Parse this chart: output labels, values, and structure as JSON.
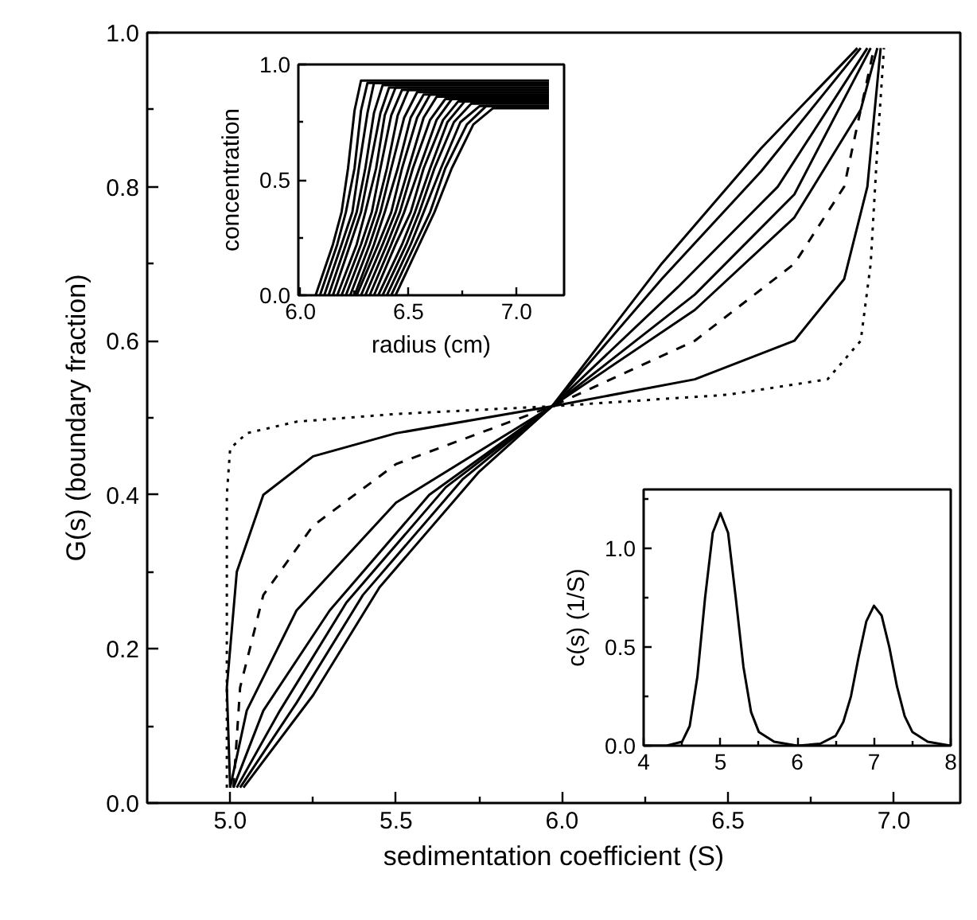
{
  "chart_data": [
    {
      "type": "line",
      "xlabel": "sedimentation coefficient (S)",
      "ylabel": "G(s) (boundary fraction)",
      "xlim": [
        4.75,
        7.2
      ],
      "ylim": [
        0,
        1
      ],
      "xticks": [
        {
          "value": 5,
          "label": "5.0"
        },
        {
          "value": 5.25,
          "label": null
        },
        5.5,
        {
          "value": 5.75,
          "label": null
        },
        {
          "value": 6,
          "label": "6.0"
        },
        {
          "value": 6.25,
          "label": null
        },
        6.5,
        {
          "value": 6.75,
          "label": null
        },
        {
          "value": 7,
          "label": "7.0"
        }
      ],
      "yticks": [
        {
          "value": 0,
          "label": "0.0"
        },
        {
          "value": 0.1,
          "label": null
        },
        0.2,
        {
          "value": 0.3,
          "label": null
        },
        0.4,
        {
          "value": 0.5,
          "label": null
        },
        0.6,
        {
          "value": 0.7,
          "label": null
        },
        0.8,
        {
          "value": 0.9,
          "label": null
        },
        {
          "value": 1,
          "label": "1.0"
        }
      ],
      "series": [
        {
          "color": "#000000",
          "line_style": "dotted",
          "x": [
            4.99,
            4.99,
            5.0,
            5.05,
            5.2,
            5.5,
            5.97,
            6.5,
            6.8,
            6.9,
            6.93,
            6.95,
            6.97
          ],
          "values": [
            0.02,
            0.4,
            0.46,
            0.48,
            0.495,
            0.505,
            0.515,
            0.53,
            0.55,
            0.6,
            0.7,
            0.85,
            0.98
          ]
        },
        {
          "color": "#000000",
          "line_style": "solid",
          "x": [
            5.0,
            4.99,
            5.02,
            5.1,
            5.25,
            5.5,
            5.97,
            6.4,
            6.7,
            6.85,
            6.92,
            6.96
          ],
          "values": [
            0.02,
            0.15,
            0.3,
            0.4,
            0.45,
            0.48,
            0.515,
            0.55,
            0.6,
            0.68,
            0.8,
            0.98
          ]
        },
        {
          "color": "#000000",
          "line_style": "dashed",
          "x": [
            5.01,
            5.03,
            5.1,
            5.25,
            5.5,
            5.97,
            6.4,
            6.7,
            6.85,
            6.94
          ],
          "values": [
            0.02,
            0.15,
            0.27,
            0.36,
            0.44,
            0.515,
            0.6,
            0.7,
            0.8,
            0.98
          ]
        },
        {
          "color": "#000000",
          "line_style": "solid",
          "x": [
            5.0,
            5.05,
            5.2,
            5.5,
            5.97,
            6.4,
            6.7,
            6.9,
            6.95
          ],
          "values": [
            0.02,
            0.12,
            0.25,
            0.39,
            0.515,
            0.64,
            0.76,
            0.9,
            0.98
          ]
        },
        {
          "color": "#000000",
          "line_style": "solid",
          "x": [
            5.01,
            5.1,
            5.3,
            5.6,
            5.97,
            6.4,
            6.7,
            6.93
          ],
          "values": [
            0.02,
            0.12,
            0.25,
            0.4,
            0.515,
            0.66,
            0.79,
            0.98
          ]
        },
        {
          "color": "#000000",
          "line_style": "solid",
          "x": [
            5.02,
            5.15,
            5.35,
            5.65,
            5.97,
            6.35,
            6.65,
            6.92
          ],
          "values": [
            0.02,
            0.12,
            0.26,
            0.41,
            0.515,
            0.67,
            0.8,
            0.98
          ]
        },
        {
          "color": "#000000",
          "line_style": "solid",
          "x": [
            5.03,
            5.2,
            5.4,
            5.7,
            5.97,
            6.3,
            6.6,
            6.9
          ],
          "values": [
            0.02,
            0.13,
            0.27,
            0.42,
            0.515,
            0.68,
            0.82,
            0.98
          ]
        },
        {
          "color": "#000000",
          "line_style": "solid",
          "x": [
            5.04,
            5.25,
            5.45,
            5.75,
            5.97,
            6.3,
            6.6,
            6.89
          ],
          "values": [
            0.02,
            0.14,
            0.28,
            0.43,
            0.515,
            0.7,
            0.85,
            0.98
          ]
        }
      ]
    },
    {
      "type": "line",
      "xlabel": "radius (cm)",
      "ylabel": "concentration",
      "xlim": [
        5.99,
        7.22
      ],
      "ylim": [
        0,
        1
      ],
      "xticks": [
        {
          "value": 6,
          "label": "6.0"
        },
        {
          "value": 6.25,
          "label": null
        },
        6.5,
        {
          "value": 6.75,
          "label": null
        },
        {
          "value": 7,
          "label": "7.0"
        }
      ],
      "yticks": [
        {
          "value": 0,
          "label": "0.0"
        },
        {
          "value": 0.25,
          "label": null
        },
        0.5,
        {
          "value": 0.75,
          "label": null
        },
        {
          "value": 1,
          "label": "1.0"
        }
      ],
      "series": [
        {
          "color": "#000000",
          "line_style": "solid",
          "x": [
            6.07,
            6.15,
            6.19,
            6.22,
            6.25,
            6.28,
            7.15
          ],
          "values": [
            0,
            0.22,
            0.36,
            0.55,
            0.8,
            0.93,
            0.93
          ]
        },
        {
          "color": "#000000",
          "line_style": "solid",
          "x": [
            6.09,
            6.17,
            6.21,
            6.25,
            6.28,
            6.31,
            7.15
          ],
          "values": [
            0,
            0.22,
            0.36,
            0.55,
            0.8,
            0.92,
            0.92
          ]
        },
        {
          "color": "#000000",
          "line_style": "solid",
          "x": [
            6.11,
            6.19,
            6.24,
            6.27,
            6.31,
            6.34,
            7.15
          ],
          "values": [
            0,
            0.22,
            0.36,
            0.55,
            0.79,
            0.92,
            0.92
          ]
        },
        {
          "color": "#000000",
          "line_style": "solid",
          "x": [
            6.13,
            6.21,
            6.26,
            6.3,
            6.34,
            6.38,
            7.15
          ],
          "values": [
            0,
            0.22,
            0.36,
            0.55,
            0.79,
            0.91,
            0.91
          ]
        },
        {
          "color": "#000000",
          "line_style": "solid",
          "x": [
            6.15,
            6.23,
            6.28,
            6.32,
            6.37,
            6.41,
            7.15
          ],
          "values": [
            0,
            0.22,
            0.36,
            0.55,
            0.79,
            0.9,
            0.9
          ]
        },
        {
          "color": "#000000",
          "line_style": "solid",
          "x": [
            6.17,
            6.26,
            6.3,
            6.35,
            6.39,
            6.44,
            7.15
          ],
          "values": [
            0,
            0.22,
            0.36,
            0.55,
            0.78,
            0.9,
            0.9
          ]
        },
        {
          "color": "#000000",
          "line_style": "solid",
          "x": [
            6.19,
            6.28,
            6.33,
            6.37,
            6.42,
            6.47,
            7.15
          ],
          "values": [
            0,
            0.22,
            0.36,
            0.55,
            0.78,
            0.89,
            0.89
          ]
        },
        {
          "color": "#000000",
          "line_style": "solid",
          "x": [
            6.21,
            6.3,
            6.35,
            6.4,
            6.45,
            6.5,
            7.15
          ],
          "values": [
            0,
            0.22,
            0.36,
            0.55,
            0.78,
            0.89,
            0.89
          ]
        },
        {
          "color": "#000000",
          "line_style": "solid",
          "x": [
            6.23,
            6.32,
            6.37,
            6.42,
            6.48,
            6.54,
            7.15
          ],
          "values": [
            0,
            0.22,
            0.36,
            0.55,
            0.77,
            0.88,
            0.88
          ]
        },
        {
          "color": "#000000",
          "line_style": "solid",
          "x": [
            6.25,
            6.34,
            6.39,
            6.45,
            6.51,
            6.57,
            7.15
          ],
          "values": [
            0,
            0.22,
            0.36,
            0.55,
            0.77,
            0.87,
            0.87
          ]
        },
        {
          "color": "#000000",
          "line_style": "solid",
          "x": [
            6.26,
            6.36,
            6.42,
            6.47,
            6.54,
            6.6,
            7.15
          ],
          "values": [
            0,
            0.22,
            0.36,
            0.55,
            0.77,
            0.87,
            0.87
          ]
        },
        {
          "color": "#000000",
          "line_style": "solid",
          "x": [
            6.28,
            6.38,
            6.44,
            6.5,
            6.57,
            6.63,
            7.15
          ],
          "values": [
            0,
            0.22,
            0.36,
            0.55,
            0.77,
            0.86,
            0.86
          ]
        },
        {
          "color": "#000000",
          "line_style": "solid",
          "x": [
            6.3,
            6.4,
            6.46,
            6.52,
            6.6,
            6.67,
            7.15
          ],
          "values": [
            0,
            0.22,
            0.36,
            0.55,
            0.76,
            0.85,
            0.85
          ]
        },
        {
          "color": "#000000",
          "line_style": "solid",
          "x": [
            6.32,
            6.42,
            6.48,
            6.55,
            6.63,
            6.7,
            7.15
          ],
          "values": [
            0,
            0.22,
            0.36,
            0.55,
            0.76,
            0.85,
            0.85
          ]
        },
        {
          "color": "#000000",
          "line_style": "solid",
          "x": [
            6.34,
            6.44,
            6.51,
            6.57,
            6.66,
            6.73,
            7.15
          ],
          "values": [
            0,
            0.22,
            0.36,
            0.55,
            0.76,
            0.84,
            0.84
          ]
        },
        {
          "color": "#000000",
          "line_style": "solid",
          "x": [
            6.36,
            6.47,
            6.53,
            6.6,
            6.68,
            6.76,
            7.15
          ],
          "values": [
            0,
            0.22,
            0.36,
            0.55,
            0.75,
            0.84,
            0.84
          ]
        },
        {
          "color": "#000000",
          "line_style": "solid",
          "x": [
            6.38,
            6.49,
            6.55,
            6.62,
            6.71,
            6.79,
            7.15
          ],
          "values": [
            0,
            0.22,
            0.36,
            0.55,
            0.75,
            0.83,
            0.83
          ]
        },
        {
          "color": "#000000",
          "line_style": "solid",
          "x": [
            6.4,
            6.51,
            6.57,
            6.65,
            6.74,
            6.83,
            7.15
          ],
          "values": [
            0,
            0.22,
            0.36,
            0.55,
            0.75,
            0.82,
            0.82
          ]
        },
        {
          "color": "#000000",
          "line_style": "solid",
          "x": [
            6.42,
            6.53,
            6.6,
            6.67,
            6.77,
            6.86,
            7.15
          ],
          "values": [
            0,
            0.22,
            0.36,
            0.55,
            0.74,
            0.82,
            0.82
          ]
        },
        {
          "color": "#000000",
          "line_style": "solid",
          "x": [
            6.44,
            6.55,
            6.62,
            6.7,
            6.8,
            6.89,
            7.15
          ],
          "values": [
            0,
            0.22,
            0.36,
            0.55,
            0.74,
            0.81,
            0.81
          ]
        }
      ]
    },
    {
      "type": "line",
      "ylabel": "c(s) (1/S)",
      "xlim": [
        4,
        8
      ],
      "ylim": [
        0,
        1.3
      ],
      "xticks": [
        4,
        {
          "value": 4.5,
          "label": null
        },
        5,
        {
          "value": 5.5,
          "label": null
        },
        6,
        {
          "value": 6.5,
          "label": null
        },
        7,
        {
          "value": 7.5,
          "label": null
        },
        8
      ],
      "yticks": [
        {
          "value": 0,
          "label": "0.0"
        },
        {
          "value": 0.25,
          "label": null
        },
        0.5,
        {
          "value": 0.75,
          "label": null
        },
        {
          "value": 1,
          "label": "1.0"
        },
        {
          "value": 1.25,
          "label": null
        }
      ],
      "series": [
        {
          "color": "#000000",
          "line_style": "solid",
          "x": [
            4.0,
            4.3,
            4.5,
            4.6,
            4.7,
            4.8,
            4.9,
            5.0,
            5.1,
            5.2,
            5.3,
            5.4,
            5.5,
            5.7,
            6.0,
            6.3,
            6.5,
            6.6,
            6.7,
            6.8,
            6.9,
            7.0,
            7.1,
            7.2,
            7.3,
            7.4,
            7.5,
            7.7,
            8.0
          ],
          "values": [
            0,
            0,
            0.02,
            0.1,
            0.35,
            0.75,
            1.08,
            1.18,
            1.08,
            0.75,
            0.4,
            0.17,
            0.07,
            0.02,
            0,
            0.01,
            0.05,
            0.12,
            0.25,
            0.45,
            0.63,
            0.71,
            0.66,
            0.5,
            0.3,
            0.15,
            0.07,
            0.02,
            0
          ]
        }
      ]
    }
  ]
}
